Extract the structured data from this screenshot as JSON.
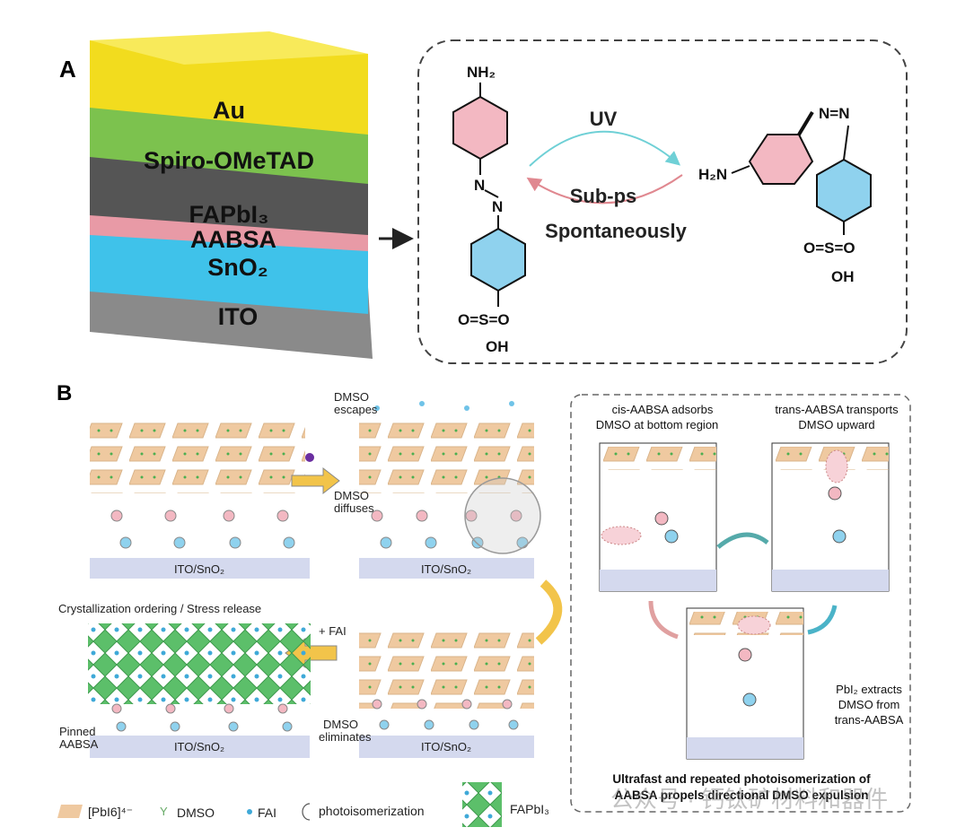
{
  "panel_a": {
    "label": "A",
    "layers": [
      "Au",
      "Spiro-OMeTAD",
      "FAPbI₃",
      "AABSA",
      "SnO₂",
      "ITO"
    ],
    "layer_colors": [
      "#f2dc1e",
      "#7cc24e",
      "#555555",
      "#e89aa6",
      "#3fc2ea",
      "#8a8a8a"
    ],
    "trans_molecule": {
      "top": "NH₂",
      "azo": "N=N",
      "sulfo": "O=S=O",
      "oh": "OH"
    },
    "cis_molecule": {
      "amine": "H₂N",
      "azo": "N=N",
      "sulfo": "O=S=O",
      "oh": "OH"
    },
    "forward_label": "UV",
    "reverse_label_1": "Sub-ps",
    "reverse_label_2": "Spontaneously"
  },
  "panel_b": {
    "label": "B",
    "substrate": "ITO/SnO₂",
    "dmso_escapes": [
      "DMSO",
      "escapes"
    ],
    "dmso_diffuses": [
      "DMSO",
      "diffuses"
    ],
    "crystallization": "Crystallization ordering / Stress release",
    "plus_fai": "+ FAI",
    "pinned": [
      "Pinned",
      "AABSA"
    ],
    "dmso_eliminates": [
      "DMSO",
      "eliminates"
    ],
    "cis_caption": [
      "cis-AABSA adsorbs",
      "DMSO  at bottom region"
    ],
    "trans_caption": [
      "trans-AABSA transports",
      "DMSO upward"
    ],
    "pbi2_caption": [
      "PbI₂ extracts",
      "DMSO from",
      "trans-AABSA"
    ],
    "summary": [
      "Ultrafast and repeated photoisomerization of",
      "AABSA propels directional DMSO expulsion"
    ],
    "legend": [
      "[PbI6]⁴⁻",
      "DMSO",
      "FAI",
      "photoisomerization",
      "FAPbI₃"
    ]
  },
  "watermark": "公众号 · 钙钛矿材料和器件",
  "colors": {
    "pbi6": "#efc9a0",
    "perovskite": "#5cbf6a",
    "substrate": "#d4d9ee",
    "arrow": "#f2c44a",
    "benzene_top": "#f3b8c2",
    "benzene_bottom": "#8fd2ee",
    "uv_arrow": "#6fd0d6",
    "reverse_arrow": "#e08890"
  }
}
